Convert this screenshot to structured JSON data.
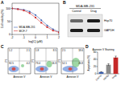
{
  "panel_labels": [
    "A",
    "B",
    "C",
    "D"
  ],
  "chart_data": [
    {
      "type": "line",
      "x_label": "log[C] (μM)",
      "y_label": "Cell viability (%)",
      "x": [
        -2,
        -1.5,
        -1,
        -0.5,
        0,
        0.5,
        1,
        1.5,
        2
      ],
      "xlim": [
        -2,
        2
      ],
      "xticks": [
        -2,
        -1,
        0,
        1,
        2
      ],
      "ylim": [
        0,
        120
      ],
      "yticks": [
        0,
        50,
        100
      ],
      "legend": "lower-left",
      "series": [
        {
          "name": "MDA-MB-231",
          "color": "#3a5fb0",
          "marker": "circle",
          "values": [
            100,
            98,
            95,
            88,
            75,
            55,
            35,
            20,
            10
          ]
        },
        {
          "name": "MCF-7",
          "color": "#d03030",
          "marker": "square",
          "values": [
            100,
            97,
            92,
            82,
            65,
            45,
            28,
            15,
            8
          ]
        }
      ]
    },
    {
      "type": "bar",
      "title": "Annexin V Staining",
      "y_label": "Apoptosis (%)",
      "categories": [
        "Control",
        "DMSO",
        "Drug"
      ],
      "values": [
        5,
        25,
        45
      ],
      "errors": [
        1,
        3,
        4
      ],
      "colors": [
        "#3a5fb0",
        "#8c8c8c",
        "#c62828"
      ],
      "ylim": [
        0,
        60
      ],
      "yticks": [
        0,
        20,
        40,
        60
      ]
    }
  ],
  "blot": {
    "cell_line": "MDA-MB-231",
    "lanes": [
      "Control",
      "Drug"
    ],
    "bands": [
      "Hsp70",
      "GAPDH"
    ]
  },
  "flow": {
    "x_label": "Annexin V",
    "y_label": "PI",
    "plots": [
      {
        "quadrants": [
          "1.2",
          "2.1",
          "92.5",
          "4.2"
        ]
      },
      {
        "quadrants": [
          "1.8",
          "8.5",
          "73.4",
          "16.3"
        ]
      },
      {
        "quadrants": [
          "2.5",
          "18.6",
          "52.1",
          "26.8"
        ]
      }
    ]
  }
}
